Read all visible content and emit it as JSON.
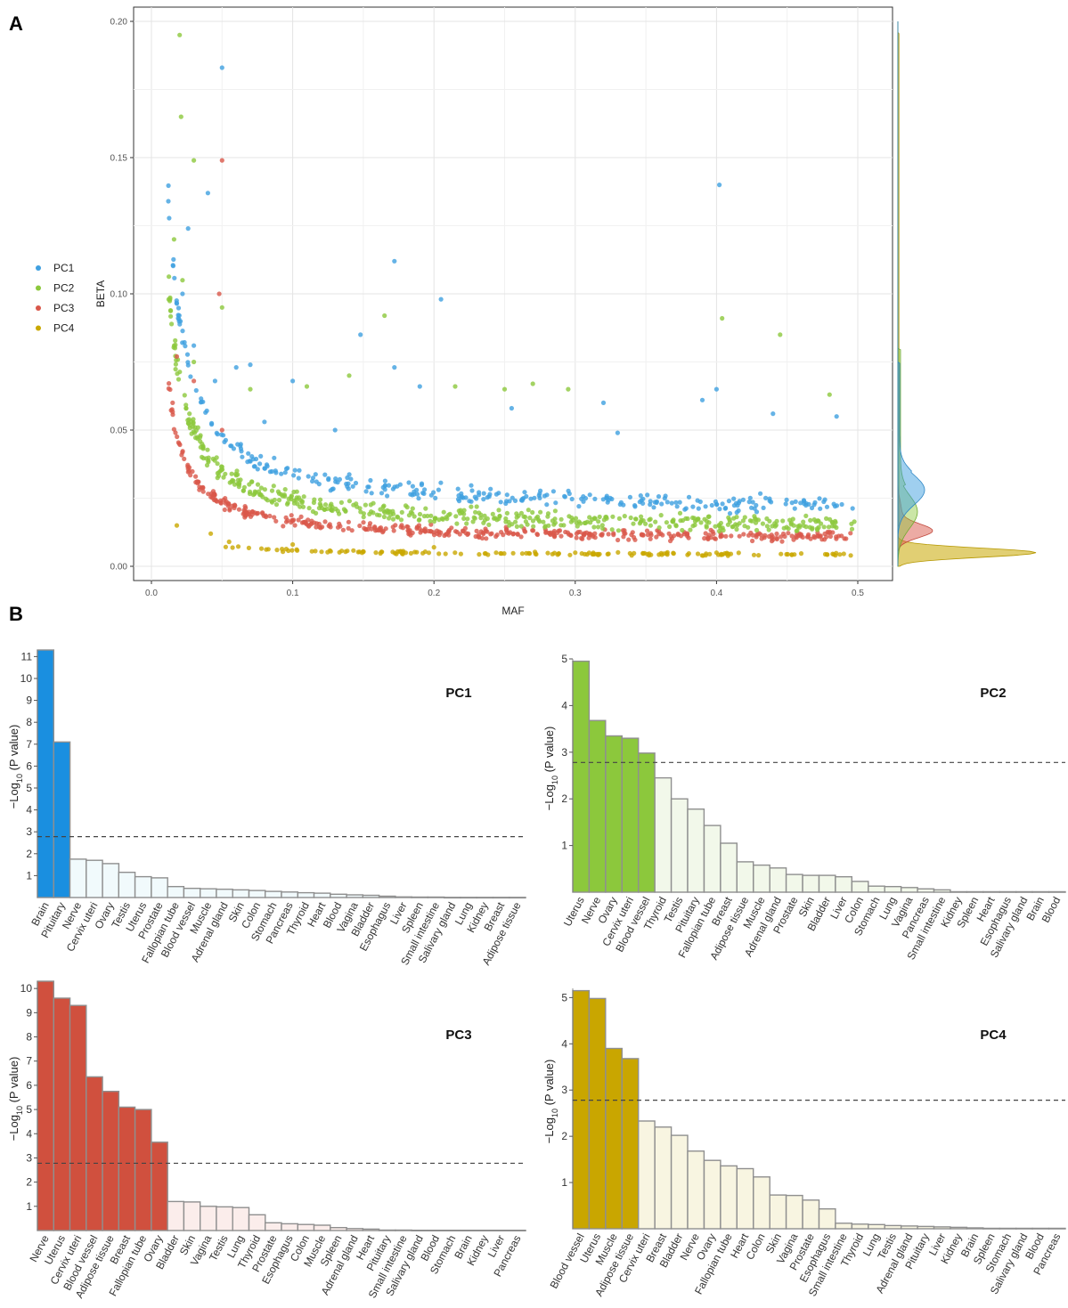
{
  "panelA": {
    "label": "A",
    "chart_data": {
      "type": "scatter",
      "xlabel": "MAF",
      "ylabel": "BETA",
      "xlim": [
        0,
        0.5
      ],
      "ylim": [
        0,
        0.2
      ],
      "xticks": [
        "0.0",
        "0.1",
        "0.2",
        "0.3",
        "0.4",
        "0.5"
      ],
      "yticks": [
        "0.00",
        "0.05",
        "0.10",
        "0.15",
        "0.20"
      ],
      "grid": true,
      "legend_position": "left",
      "marginal_density": "right",
      "series": [
        {
          "name": "PC1",
          "color": "#3FA0E0",
          "points": [
            [
              0.012,
              0.134
            ],
            [
              0.05,
              0.183
            ],
            [
              0.026,
              0.124
            ],
            [
              0.04,
              0.137
            ],
            [
              0.172,
              0.112
            ],
            [
              0.205,
              0.098
            ],
            [
              0.148,
              0.085
            ],
            [
              0.402,
              0.14
            ],
            [
              0.022,
              0.1
            ],
            [
              0.03,
              0.081
            ],
            [
              0.06,
              0.073
            ],
            [
              0.07,
              0.074
            ],
            [
              0.1,
              0.068
            ],
            [
              0.172,
              0.073
            ],
            [
              0.4,
              0.065
            ],
            [
              0.045,
              0.068
            ],
            [
              0.19,
              0.066
            ],
            [
              0.32,
              0.06
            ],
            [
              0.44,
              0.056
            ],
            [
              0.485,
              0.055
            ],
            [
              0.255,
              0.058
            ],
            [
              0.39,
              0.061
            ],
            [
              0.33,
              0.049
            ],
            [
              0.13,
              0.05
            ],
            [
              0.08,
              0.053
            ]
          ]
        },
        {
          "name": "PC2",
          "color": "#8CC83C",
          "points": [
            [
              0.02,
              0.195
            ],
            [
              0.021,
              0.165
            ],
            [
              0.03,
              0.149
            ],
            [
              0.016,
              0.12
            ],
            [
              0.022,
              0.105
            ],
            [
              0.05,
              0.095
            ],
            [
              0.165,
              0.092
            ],
            [
              0.404,
              0.091
            ],
            [
              0.445,
              0.085
            ],
            [
              0.14,
              0.07
            ],
            [
              0.215,
              0.066
            ],
            [
              0.27,
              0.067
            ],
            [
              0.295,
              0.065
            ],
            [
              0.48,
              0.063
            ],
            [
              0.11,
              0.066
            ],
            [
              0.07,
              0.065
            ],
            [
              0.25,
              0.065
            ],
            [
              0.03,
              0.075
            ]
          ]
        },
        {
          "name": "PC3",
          "color": "#D9574A",
          "points": [
            [
              0.05,
              0.149
            ],
            [
              0.048,
              0.1
            ],
            [
              0.018,
              0.077
            ],
            [
              0.03,
              0.068
            ],
            [
              0.015,
              0.06
            ],
            [
              0.05,
              0.05
            ]
          ]
        },
        {
          "name": "PC4",
          "color": "#C9A800",
          "points": [
            [
              0.018,
              0.015
            ],
            [
              0.042,
              0.012
            ],
            [
              0.055,
              0.009
            ],
            [
              0.1,
              0.008
            ],
            [
              0.2,
              0.007
            ],
            [
              0.3,
              0.005
            ],
            [
              0.4,
              0.005
            ],
            [
              0.495,
              0.004
            ]
          ]
        }
      ]
    }
  },
  "panelB": {
    "label": "B",
    "ylabel_main": "−Log",
    "ylabel_sub": "10",
    "ylabel_rest": " (P value)",
    "threshold": 2.78,
    "panels": [
      {
        "chart_data": {
          "type": "bar",
          "title": "PC1",
          "color": "#1A8FE0",
          "light": "#F1FAFC",
          "ylim": [
            0,
            11.3
          ],
          "yticks": [
            1,
            2,
            3,
            4,
            5,
            6,
            7,
            8,
            9,
            10,
            11
          ],
          "categories": [
            "Brain",
            "Pituitary",
            "Nerve",
            "Cervix uteri",
            "Ovary",
            "Testis",
            "Uterus",
            "Prostate",
            "Fallopian tube",
            "Blood vessel",
            "Muscle",
            "Adrenal gland",
            "Skin",
            "Colon",
            "Stomach",
            "Pancreas",
            "Thyroid",
            "Heart",
            "Blood",
            "Vagina",
            "Bladder",
            "Esophagus",
            "Liver",
            "Spleen",
            "Small intestine",
            "Salivary gland",
            "Lung",
            "Kidney",
            "Breast",
            "Adipose tissue"
          ],
          "values": [
            11.3,
            7.1,
            1.75,
            1.7,
            1.55,
            1.15,
            0.95,
            0.9,
            0.5,
            0.42,
            0.4,
            0.38,
            0.35,
            0.32,
            0.28,
            0.25,
            0.22,
            0.2,
            0.15,
            0.12,
            0.1,
            0.06,
            0.03,
            0.02,
            0.02,
            0.01,
            0.01,
            0.01,
            0.01,
            0.01
          ]
        }
      },
      {
        "chart_data": {
          "type": "bar",
          "title": "PC2",
          "color": "#8CC83C",
          "light": "#F2F8EA",
          "ylim": [
            0,
            5
          ],
          "yticks": [
            1,
            2,
            3,
            4,
            5
          ],
          "categories": [
            "Uterus",
            "Nerve",
            "Ovary",
            "Cervix uteri",
            "Blood vessel",
            "Thyroid",
            "Testis",
            "Pituitary",
            "Fallopian tube",
            "Breast",
            "Adipose tissue",
            "Muscle",
            "Adrenal gland",
            "Prostate",
            "Skin",
            "Bladder",
            "Liver",
            "Colon",
            "Stomach",
            "Lung",
            "Vagina",
            "Pancreas",
            "Small intestine",
            "Kidney",
            "Spleen",
            "Heart",
            "Esophagus",
            "Salivary gland",
            "Brain",
            "Blood"
          ],
          "values": [
            4.95,
            3.68,
            3.35,
            3.3,
            2.98,
            2.45,
            2.0,
            1.78,
            1.43,
            1.05,
            0.65,
            0.58,
            0.52,
            0.38,
            0.36,
            0.36,
            0.33,
            0.23,
            0.13,
            0.12,
            0.1,
            0.07,
            0.05,
            0.01,
            0.01,
            0.01,
            0.01,
            0.01,
            0.01,
            0.01
          ]
        }
      },
      {
        "chart_data": {
          "type": "bar",
          "title": "PC3",
          "color": "#D0503E",
          "light": "#FBEDEB",
          "ylim": [
            0,
            10.3
          ],
          "yticks": [
            1,
            2,
            3,
            4,
            5,
            6,
            7,
            8,
            9,
            10
          ],
          "categories": [
            "Nerve",
            "Uterus",
            "Cervix uteri",
            "Blood vessel",
            "Adipose tissue",
            "Breast",
            "Fallopian tube",
            "Ovary",
            "Bladder",
            "Skin",
            "Vagina",
            "Testis",
            "Lung",
            "Thyroid",
            "Prostate",
            "Esophagus",
            "Colon",
            "Muscle",
            "Spleen",
            "Adrenal gland",
            "Heart",
            "Pituitary",
            "Small intestine",
            "Salivary gland",
            "Blood",
            "Stomach",
            "Brain",
            "Kidney",
            "Liver",
            "Pancreas"
          ],
          "values": [
            10.3,
            9.6,
            9.3,
            6.35,
            5.75,
            5.1,
            5.0,
            3.65,
            1.2,
            1.18,
            1.0,
            0.98,
            0.95,
            0.65,
            0.32,
            0.28,
            0.25,
            0.22,
            0.12,
            0.08,
            0.06,
            0.02,
            0.02,
            0.01,
            0.01,
            0.01,
            0.01,
            0.01,
            0.01,
            0.01
          ]
        }
      },
      {
        "chart_data": {
          "type": "bar",
          "title": "PC4",
          "color": "#C9A600",
          "light": "#F8F5E1",
          "ylim": [
            0,
            5.2
          ],
          "yticks": [
            1,
            2,
            3,
            4,
            5
          ],
          "categories": [
            "Blood vessel",
            "Uterus",
            "Muscle",
            "Adipose tissue",
            "Cervix uteri",
            "Breast",
            "Bladder",
            "Nerve",
            "Ovary",
            "Fallopian tube",
            "Heart",
            "Colon",
            "Skin",
            "Vagina",
            "Prostate",
            "Esophagus",
            "Small intestine",
            "Thyroid",
            "Lung",
            "Testis",
            "Adrenal gland",
            "Pituitary",
            "Liver",
            "Kidney",
            "Brain",
            "Spleen",
            "Stomach",
            "Salivary gland",
            "Blood",
            "Pancreas"
          ],
          "values": [
            5.15,
            4.98,
            3.9,
            3.68,
            2.33,
            2.2,
            2.02,
            1.68,
            1.48,
            1.36,
            1.3,
            1.12,
            0.73,
            0.72,
            0.62,
            0.43,
            0.12,
            0.1,
            0.09,
            0.07,
            0.06,
            0.05,
            0.04,
            0.03,
            0.02,
            0.01,
            0.01,
            0.01,
            0.01,
            0.01
          ]
        }
      }
    ]
  }
}
